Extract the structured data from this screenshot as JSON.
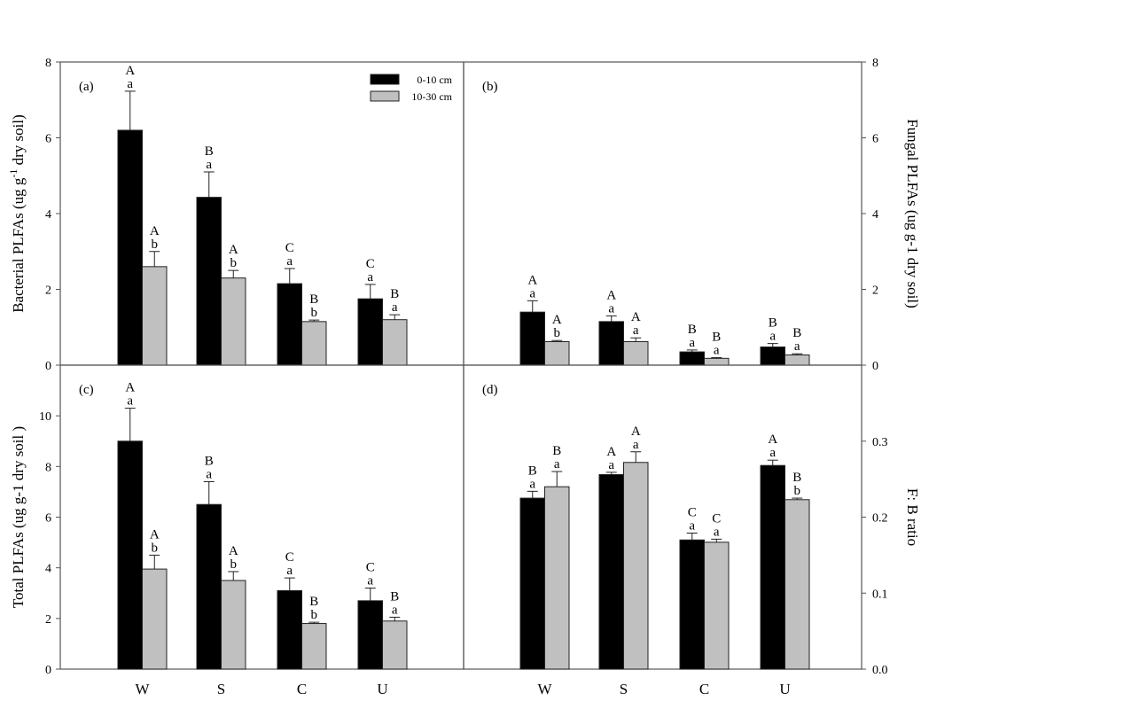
{
  "chart_data": [
    {
      "type": "bar",
      "panel_label": "(a)",
      "title": "",
      "xlabel": "",
      "ylabel_parts": [
        "Bacterial PLFAs  (ug g",
        "-1",
        " dry soil)"
      ],
      "ylim": [
        0,
        8
      ],
      "yticks": [
        0,
        2,
        4,
        6,
        8
      ],
      "ytick_labels": [
        "0",
        "2",
        "4",
        "6",
        "8"
      ],
      "axis_side": "left",
      "categories": [
        "W",
        "S",
        "C",
        "U"
      ],
      "series": [
        {
          "name": "0-10 cm",
          "values": [
            6.2,
            4.43,
            2.15,
            1.75
          ],
          "errors": [
            1.03,
            0.67,
            0.4,
            0.38
          ],
          "letters_upper": [
            "A",
            "B",
            "C",
            "C"
          ],
          "letters_lower": [
            "a",
            "a",
            "a",
            "a"
          ]
        },
        {
          "name": "10-30 cm",
          "values": [
            2.6,
            2.3,
            1.15,
            1.2
          ],
          "errors": [
            0.4,
            0.2,
            0.04,
            0.13
          ],
          "letters_upper": [
            "A",
            "A",
            "B",
            "B"
          ],
          "letters_lower": [
            "b",
            "b",
            "b",
            "a"
          ]
        }
      ],
      "legend": {
        "placement": "top-right",
        "entries": [
          "0-10 cm",
          "10-30 cm"
        ]
      }
    },
    {
      "type": "bar",
      "panel_label": "(b)",
      "ylabel_parts": [
        "Fungal PLFAs  (ug g-1 dry soil)"
      ],
      "ylim": [
        0,
        8
      ],
      "yticks": [
        0,
        2,
        4,
        6,
        8
      ],
      "ytick_labels": [
        "0",
        "2",
        "4",
        "6",
        "8"
      ],
      "axis_side": "right",
      "categories": [
        "W",
        "S",
        "C",
        "U"
      ],
      "series": [
        {
          "name": "0-10 cm",
          "values": [
            1.4,
            1.15,
            0.35,
            0.48
          ],
          "errors": [
            0.3,
            0.15,
            0.05,
            0.09
          ],
          "letters_upper": [
            "A",
            "A",
            "B",
            "B"
          ],
          "letters_lower": [
            "a",
            "a",
            "a",
            "a"
          ]
        },
        {
          "name": "10-30 cm",
          "values": [
            0.62,
            0.62,
            0.18,
            0.27
          ],
          "errors": [
            0.03,
            0.1,
            0.02,
            0.03
          ],
          "letters_upper": [
            "A",
            "A",
            "B",
            "B"
          ],
          "letters_lower": [
            "b",
            "a",
            "a",
            "a"
          ]
        }
      ]
    },
    {
      "type": "bar",
      "panel_label": "(c)",
      "ylabel_parts": [
        "Total PLFAs  (ug  g-1 dry soil )"
      ],
      "ylim": [
        0,
        12
      ],
      "yticks": [
        0,
        2,
        4,
        6,
        8,
        10
      ],
      "ytick_labels": [
        "0",
        "2",
        "4",
        "6",
        "8",
        "10"
      ],
      "axis_side": "left",
      "categories": [
        "W",
        "S",
        "C",
        "U"
      ],
      "series": [
        {
          "name": "0-10 cm",
          "values": [
            9.0,
            6.5,
            3.1,
            2.7
          ],
          "errors": [
            1.3,
            0.9,
            0.5,
            0.5
          ],
          "letters_upper": [
            "A",
            "B",
            "C",
            "C"
          ],
          "letters_lower": [
            "a",
            "a",
            "a",
            "a"
          ]
        },
        {
          "name": "10-30 cm",
          "values": [
            3.95,
            3.5,
            1.8,
            1.9
          ],
          "errors": [
            0.55,
            0.35,
            0.05,
            0.15
          ],
          "letters_upper": [
            "A",
            "A",
            "B",
            "B"
          ],
          "letters_lower": [
            "b",
            "b",
            "b",
            "a"
          ]
        }
      ]
    },
    {
      "type": "bar",
      "panel_label": "(d)",
      "ylabel_parts": [
        "F: B ratio"
      ],
      "ylim": [
        0,
        0.4
      ],
      "yticks": [
        0,
        0.1,
        0.2,
        0.3
      ],
      "ytick_labels": [
        "0.0",
        "0.1",
        "0.2",
        "0.3"
      ],
      "axis_side": "right",
      "categories": [
        "W",
        "S",
        "C",
        "U"
      ],
      "series": [
        {
          "name": "0-10 cm",
          "values": [
            0.225,
            0.256,
            0.17,
            0.268
          ],
          "errors": [
            0.009,
            0.003,
            0.009,
            0.007
          ],
          "letters_upper": [
            "B",
            "A",
            "C",
            "A"
          ],
          "letters_lower": [
            "a",
            "a",
            "a",
            "a"
          ]
        },
        {
          "name": "10-30 cm",
          "values": [
            0.24,
            0.272,
            0.167,
            0.223
          ],
          "errors": [
            0.02,
            0.014,
            0.004,
            0.002
          ],
          "letters_upper": [
            "B",
            "A",
            "C",
            "B"
          ],
          "letters_lower": [
            "a",
            "a",
            "a",
            "b"
          ]
        }
      ]
    }
  ],
  "x_category_labels": [
    "W",
    "S",
    "C",
    "U"
  ],
  "colors": {
    "series_0": "#000000",
    "series_1": "#c0c0c0",
    "axis": "#555555"
  }
}
